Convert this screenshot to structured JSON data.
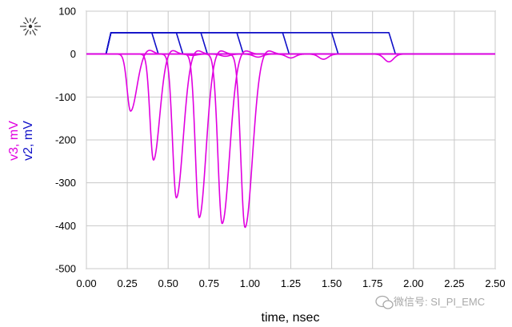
{
  "chart_data": {
    "type": "line",
    "title": "",
    "xlabel": "time, nsec",
    "ylabels": [
      {
        "text": "v3, mV",
        "color": "#e000e0"
      },
      {
        "text": "v2, mV",
        "color": "#1010c8"
      }
    ],
    "xlim": [
      0.0,
      2.5
    ],
    "ylim": [
      -500,
      100
    ],
    "xticks": [
      "0.00",
      "0.25",
      "0.50",
      "0.75",
      "1.00",
      "1.25",
      "1.50",
      "1.75",
      "2.00",
      "2.25",
      "2.50"
    ],
    "yticks": [
      "100",
      "0",
      "-100",
      "-200",
      "-300",
      "-400",
      "-500"
    ],
    "grid": true,
    "legend": "none",
    "colors": {
      "v2": "#1010c8",
      "v3": "#e000e0",
      "grid": "#c8c8c8"
    },
    "series": [
      {
        "group": "v2",
        "pulse": {
          "start": 0.12,
          "top_start": 0.15,
          "top_end": 0.4,
          "end": 0.44,
          "level": 50,
          "ripple": 0
        }
      },
      {
        "group": "v2",
        "pulse": {
          "start": 0.12,
          "top_start": 0.15,
          "top_end": 0.55,
          "end": 0.59,
          "level": 50,
          "ripple": 0
        }
      },
      {
        "group": "v2",
        "pulse": {
          "start": 0.12,
          "top_start": 0.15,
          "top_end": 0.7,
          "end": 0.74,
          "level": 50,
          "ripple": 0
        }
      },
      {
        "group": "v2",
        "pulse": {
          "start": 0.12,
          "top_start": 0.15,
          "top_end": 0.92,
          "end": 0.96,
          "level": 50,
          "ripple": 0
        }
      },
      {
        "group": "v2",
        "pulse": {
          "start": 0.12,
          "top_start": 0.15,
          "top_end": 1.2,
          "end": 1.24,
          "level": 50,
          "ripple": 0
        }
      },
      {
        "group": "v2",
        "pulse": {
          "start": 0.12,
          "top_start": 0.15,
          "top_end": 1.5,
          "end": 1.54,
          "level": 50,
          "ripple": 0
        }
      },
      {
        "group": "v2",
        "pulse": {
          "start": 0.12,
          "top_start": 0.15,
          "top_end": 1.85,
          "end": 1.89,
          "level": 50,
          "ripple": 0
        }
      },
      {
        "group": "v3",
        "dip": {
          "t": 0.27,
          "depth": -133,
          "width": 0.05,
          "echo_t": 0.65,
          "echo_depth": -3
        }
      },
      {
        "group": "v3",
        "dip": {
          "t": 0.41,
          "depth": -247,
          "width": 0.05,
          "echo_t": 0.85,
          "echo_depth": -5
        }
      },
      {
        "group": "v3",
        "dip": {
          "t": 0.55,
          "depth": -335,
          "width": 0.055,
          "echo_t": 1.05,
          "echo_depth": -7
        }
      },
      {
        "group": "v3",
        "dip": {
          "t": 0.69,
          "depth": -381,
          "width": 0.055,
          "echo_t": 1.25,
          "echo_depth": -9
        }
      },
      {
        "group": "v3",
        "dip": {
          "t": 0.83,
          "depth": -395,
          "width": 0.06,
          "echo_t": 1.45,
          "echo_depth": -12
        }
      },
      {
        "group": "v3",
        "dip": {
          "t": 0.97,
          "depth": -404,
          "width": 0.06,
          "echo_t": 1.85,
          "echo_depth": -18
        }
      }
    ]
  },
  "watermark": {
    "text": "微信号: SI_PI_EMC",
    "icon": "wechat-icon"
  },
  "logo": {
    "icon": "agilent-spark-logo"
  }
}
